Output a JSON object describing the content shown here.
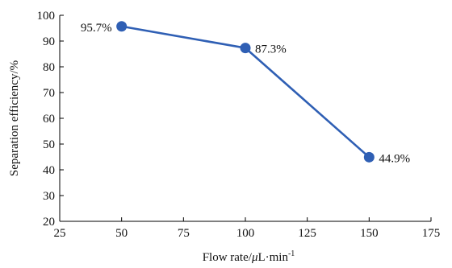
{
  "chart_data": {
    "type": "line",
    "title": "",
    "xlabel_main": "Flow rate/",
    "xlabel_mu": "μ",
    "xlabel_unit": "L·min",
    "xlabel_sup": "-1",
    "ylabel": "Separation efficiency/%",
    "xlim": [
      25,
      175
    ],
    "ylim": [
      20,
      100
    ],
    "x_ticks": [
      "25",
      "50",
      "75",
      "100",
      "125",
      "150",
      "175"
    ],
    "y_ticks": [
      "20",
      "30",
      "40",
      "50",
      "60",
      "70",
      "80",
      "90",
      "100"
    ],
    "grid": false,
    "color": "#2f5fb4",
    "series": [
      {
        "x": [
          50,
          100,
          150
        ],
        "y": [
          95.7,
          87.3,
          44.9
        ],
        "labels": [
          "95.7%",
          "87.3%",
          "44.9%"
        ]
      }
    ]
  }
}
